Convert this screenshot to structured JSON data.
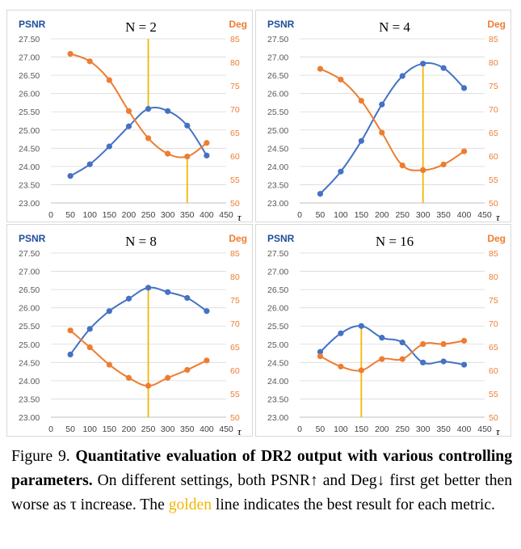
{
  "chart_data": [
    {
      "type": "line",
      "title": "N = 2",
      "xlabel": "τ",
      "ylabel_left": "PSNR",
      "ylabel_right": "Deg",
      "x": [
        50,
        100,
        150,
        200,
        250,
        300,
        350,
        400
      ],
      "x_ticks": [
        "0",
        "50",
        "100",
        "150",
        "200",
        "250",
        "300",
        "350",
        "400",
        "450"
      ],
      "ylim_left": [
        23.0,
        27.5
      ],
      "ylim_right": [
        50,
        85
      ],
      "left_ticks": [
        "23.00",
        "23.50",
        "24.00",
        "24.50",
        "25.00",
        "25.50",
        "26.00",
        "26.50",
        "27.00",
        "27.50"
      ],
      "right_ticks": [
        "50",
        "55",
        "60",
        "65",
        "70",
        "75",
        "80",
        "85"
      ],
      "series": [
        {
          "name": "PSNR",
          "axis": "left",
          "color": "#4472c4",
          "values": [
            23.74,
            24.06,
            24.55,
            25.1,
            25.58,
            25.52,
            25.12,
            24.3
          ]
        },
        {
          "name": "Deg",
          "axis": "right",
          "color": "#ed7d31",
          "values": [
            81.8,
            80.2,
            76.2,
            69.6,
            63.8,
            60.5,
            59.9,
            62.8
          ]
        }
      ],
      "golden_lines": [
        {
          "x": 250,
          "from_left": 27.5,
          "to_left": 25.58
        },
        {
          "x": 350,
          "from_right": 59.9,
          "to_right": 50
        }
      ]
    },
    {
      "type": "line",
      "title": "N = 4",
      "xlabel": "τ",
      "ylabel_left": "PSNR",
      "ylabel_right": "Deg",
      "x": [
        50,
        100,
        150,
        200,
        250,
        300,
        350,
        400
      ],
      "x_ticks": [
        "0",
        "50",
        "100",
        "150",
        "200",
        "250",
        "300",
        "350",
        "400",
        "450"
      ],
      "ylim_left": [
        23.0,
        27.5
      ],
      "ylim_right": [
        50,
        85
      ],
      "left_ticks": [
        "23.00",
        "23.50",
        "24.00",
        "24.50",
        "25.00",
        "25.50",
        "26.00",
        "26.50",
        "27.00",
        "27.50"
      ],
      "right_ticks": [
        "50",
        "55",
        "60",
        "65",
        "70",
        "75",
        "80",
        "85"
      ],
      "series": [
        {
          "name": "PSNR",
          "axis": "left",
          "color": "#4472c4",
          "values": [
            23.25,
            23.86,
            24.7,
            25.7,
            26.48,
            26.82,
            26.7,
            26.15
          ]
        },
        {
          "name": "Deg",
          "axis": "right",
          "color": "#ed7d31",
          "values": [
            78.6,
            76.3,
            71.8,
            65.0,
            58.0,
            57.0,
            58.2,
            61.0
          ]
        }
      ],
      "golden_lines": [
        {
          "x": 300,
          "from_left": 26.82,
          "to_right": 50
        }
      ]
    },
    {
      "type": "line",
      "title": "N = 8",
      "xlabel": "τ",
      "ylabel_left": "PSNR",
      "ylabel_right": "Deg",
      "x": [
        50,
        100,
        150,
        200,
        250,
        300,
        350,
        400
      ],
      "x_ticks": [
        "0",
        "50",
        "100",
        "150",
        "200",
        "250",
        "300",
        "350",
        "400",
        "450"
      ],
      "ylim_left": [
        23.0,
        27.5
      ],
      "ylim_right": [
        50,
        85
      ],
      "left_ticks": [
        "23.00",
        "23.50",
        "24.00",
        "24.50",
        "25.00",
        "25.50",
        "26.00",
        "26.50",
        "27.00",
        "27.50"
      ],
      "right_ticks": [
        "50",
        "55",
        "60",
        "65",
        "70",
        "75",
        "80",
        "85"
      ],
      "series": [
        {
          "name": "PSNR",
          "axis": "left",
          "color": "#4472c4",
          "values": [
            24.72,
            25.42,
            25.91,
            26.25,
            26.55,
            26.43,
            26.27,
            25.91
          ]
        },
        {
          "name": "Deg",
          "axis": "right",
          "color": "#ed7d31",
          "values": [
            68.5,
            64.9,
            61.2,
            58.4,
            56.7,
            58.4,
            60.1,
            62.1
          ]
        }
      ],
      "golden_lines": [
        {
          "x": 250,
          "from_left": 26.55,
          "to_right": 50
        }
      ]
    },
    {
      "type": "line",
      "title": "N = 16",
      "xlabel": "τ",
      "ylabel_left": "PSNR",
      "ylabel_right": "Deg",
      "x": [
        50,
        100,
        150,
        200,
        250,
        300,
        350,
        400
      ],
      "x_ticks": [
        "0",
        "50",
        "100",
        "150",
        "200",
        "250",
        "300",
        "350",
        "400",
        "450"
      ],
      "ylim_left": [
        23.0,
        27.5
      ],
      "ylim_right": [
        50,
        85
      ],
      "left_ticks": [
        "23.00",
        "23.50",
        "24.00",
        "24.50",
        "25.00",
        "25.50",
        "26.00",
        "26.50",
        "27.00",
        "27.50"
      ],
      "right_ticks": [
        "50",
        "55",
        "60",
        "65",
        "70",
        "75",
        "80",
        "85"
      ],
      "series": [
        {
          "name": "PSNR",
          "axis": "left",
          "color": "#4472c4",
          "values": [
            24.79,
            25.3,
            25.5,
            25.18,
            25.05,
            24.5,
            24.53,
            24.44
          ]
        },
        {
          "name": "Deg",
          "axis": "right",
          "color": "#ed7d31",
          "values": [
            63.0,
            60.8,
            60.0,
            62.4,
            62.4,
            65.6,
            65.6,
            66.3
          ]
        }
      ],
      "golden_lines": [
        {
          "x": 150,
          "from_left": 25.5,
          "to_right": 50
        }
      ]
    }
  ],
  "caption": {
    "figure_label": "Figure 9.",
    "bold_text": "Quantitative evaluation of DR2 output with various controlling parameters.",
    "text_before_golden": "On different settings, both PSNR↑ and Deg↓ first get better then worse as τ increase.  The",
    "golden_word": "golden",
    "text_after_golden": "line indicates the best result for each metric."
  },
  "colors": {
    "psnr": "#4472c4",
    "deg": "#ed7d31",
    "golden": "#f2b705",
    "left_axis_label": "#1f4e9a",
    "tick_text": "#595959",
    "gridline": "#d9d9d9",
    "panel_border": "#d9d9d9"
  }
}
